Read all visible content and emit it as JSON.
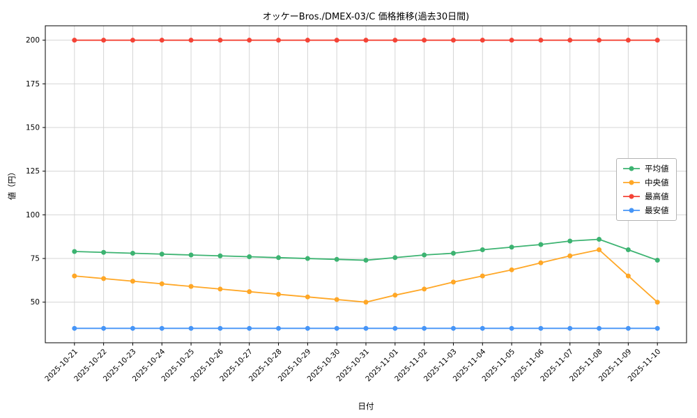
{
  "chart_data": {
    "type": "line",
    "title": "オッケーBros./DMEX-03/C 価格推移(過去30日間)",
    "xlabel": "日付",
    "ylabel": "値（円）",
    "x": [
      "2025-10-21",
      "2025-10-22",
      "2025-10-23",
      "2025-10-24",
      "2025-10-25",
      "2025-10-26",
      "2025-10-27",
      "2025-10-28",
      "2025-10-29",
      "2025-10-30",
      "2025-10-31",
      "2025-11-01",
      "2025-11-02",
      "2025-11-03",
      "2025-11-04",
      "2025-11-05",
      "2025-11-06",
      "2025-11-07",
      "2025-11-08",
      "2025-11-09",
      "2025-11-10"
    ],
    "series": [
      {
        "key": "average",
        "name": "平均値",
        "color": "#3cb371",
        "values": [
          79,
          78.5,
          78,
          77.5,
          77,
          76.5,
          76,
          75.5,
          75,
          74.5,
          74,
          75.5,
          77,
          78,
          80,
          81.5,
          83,
          85,
          86,
          80,
          74
        ]
      },
      {
        "key": "median",
        "name": "中央値",
        "color": "#ffa726",
        "values": [
          65,
          63.5,
          62,
          60.5,
          59,
          57.5,
          56,
          54.5,
          53,
          51.5,
          50,
          54,
          57.5,
          61.5,
          65,
          68.5,
          72.5,
          76.5,
          80,
          65,
          50
        ]
      },
      {
        "key": "highest",
        "name": "最高値",
        "color": "#f44336",
        "values": [
          200,
          200,
          200,
          200,
          200,
          200,
          200,
          200,
          200,
          200,
          200,
          200,
          200,
          200,
          200,
          200,
          200,
          200,
          200,
          200,
          200
        ]
      },
      {
        "key": "lowest",
        "name": "最安値",
        "color": "#4695f7",
        "values": [
          35,
          35,
          35,
          35,
          35,
          35,
          35,
          35,
          35,
          35,
          35,
          35,
          35,
          35,
          35,
          35,
          35,
          35,
          35,
          35,
          35
        ]
      }
    ],
    "yticks": [
      50,
      75,
      100,
      125,
      150,
      175,
      200
    ],
    "ylim": [
      26.75,
      208.25
    ],
    "grid": true,
    "grid_color": "#d4d4d4",
    "legend_position": "center-right",
    "background": "#ffffff"
  }
}
